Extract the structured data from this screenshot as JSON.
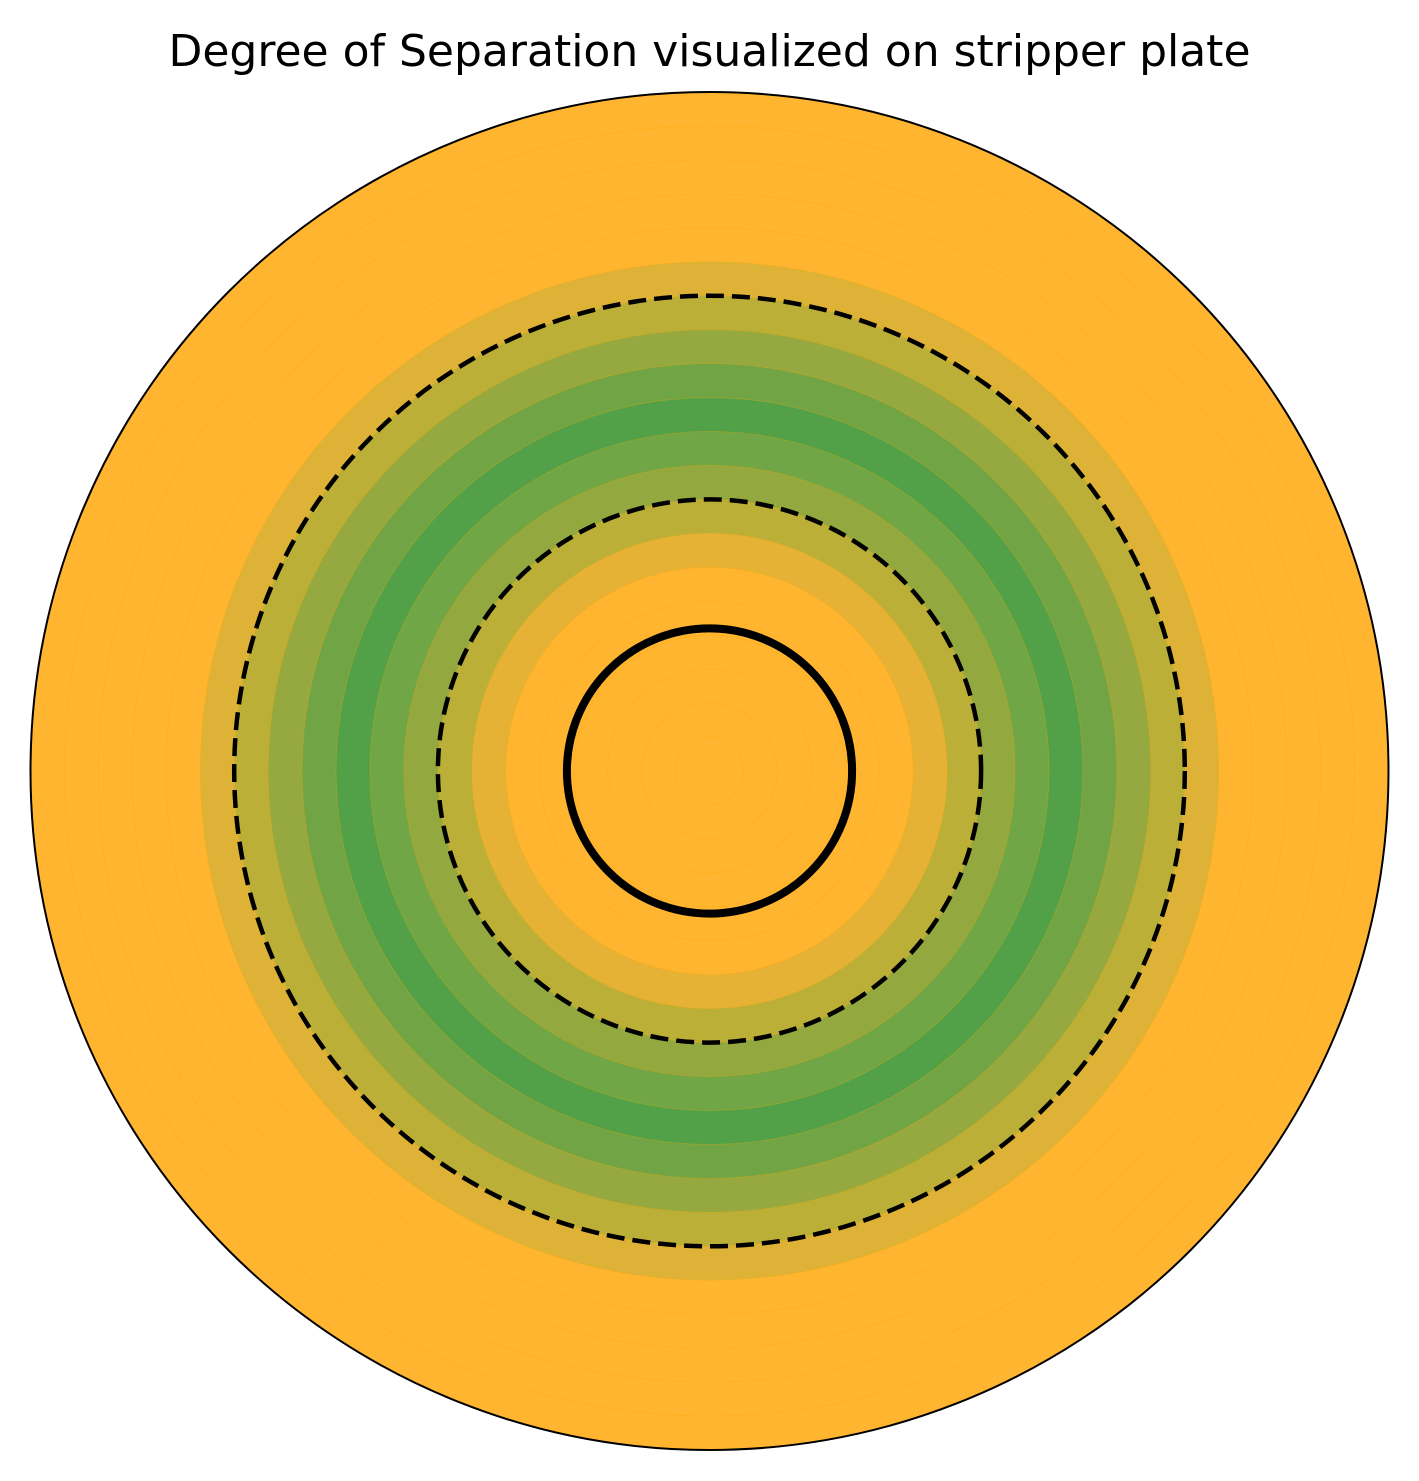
{
  "chart_data": {
    "type": "polar_ring_heatmap",
    "title": "Degree of Separation visualized on stripper plate",
    "r_max": 20,
    "ring_width": 1,
    "rings": [
      {
        "r_inner": 0,
        "r_outer": 1,
        "color": "#FFB530"
      },
      {
        "r_inner": 1,
        "r_outer": 2,
        "color": "#FFB530"
      },
      {
        "r_inner": 2,
        "r_outer": 3,
        "color": "#FFB530"
      },
      {
        "r_inner": 3,
        "r_outer": 4,
        "color": "#FFB530"
      },
      {
        "r_inner": 4,
        "r_outer": 5,
        "color": "#FFB530"
      },
      {
        "r_inner": 5,
        "r_outer": 6,
        "color": "#FFB530"
      },
      {
        "r_inner": 6,
        "r_outer": 7,
        "color": "#E5B236"
      },
      {
        "r_inner": 7,
        "r_outer": 8,
        "color": "#BBAF38"
      },
      {
        "r_inner": 8,
        "r_outer": 9,
        "color": "#94A840"
      },
      {
        "r_inner": 9,
        "r_outer": 10,
        "color": "#70A645"
      },
      {
        "r_inner": 10,
        "r_outer": 11,
        "color": "#52A149"
      },
      {
        "r_inner": 11,
        "r_outer": 12,
        "color": "#71A445"
      },
      {
        "r_inner": 12,
        "r_outer": 13,
        "color": "#95A940"
      },
      {
        "r_inner": 13,
        "r_outer": 14,
        "color": "#BBAF38"
      },
      {
        "r_inner": 14,
        "r_outer": 15,
        "color": "#DDB237"
      },
      {
        "r_inner": 15,
        "r_outer": 16,
        "color": "#FFB530"
      },
      {
        "r_inner": 16,
        "r_outer": 17,
        "color": "#FFB530"
      },
      {
        "r_inner": 17,
        "r_outer": 18,
        "color": "#FFB530"
      },
      {
        "r_inner": 18,
        "r_outer": 19,
        "color": "#FFB530"
      },
      {
        "r_inner": 19,
        "r_outer": 20,
        "color": "#FFB530"
      }
    ],
    "reference_circles": [
      {
        "r": 4.2,
        "style": "solid",
        "color": "#000000"
      },
      {
        "r": 8.0,
        "style": "dashed",
        "color": "#000000"
      },
      {
        "r": 14.0,
        "style": "dashed",
        "color": "#000000"
      }
    ],
    "outline_color": "#000000",
    "grid": false,
    "legend": "none"
  }
}
